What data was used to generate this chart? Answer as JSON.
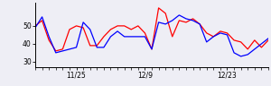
{
  "red_values": [
    50,
    53,
    42,
    36,
    37,
    48,
    50,
    49,
    39,
    39,
    44,
    48,
    50,
    50,
    48,
    50,
    46,
    37,
    60,
    57,
    44,
    53,
    52,
    54,
    51,
    46,
    44,
    47,
    46,
    42,
    41,
    37,
    42,
    38,
    42
  ],
  "blue_values": [
    49,
    55,
    44,
    35,
    36,
    37,
    38,
    52,
    48,
    38,
    38,
    44,
    47,
    44,
    44,
    44,
    44,
    37,
    52,
    51,
    53,
    56,
    54,
    53,
    51,
    41,
    44,
    46,
    45,
    35,
    33,
    34,
    37,
    40,
    43
  ],
  "xtick_positions": [
    6,
    16,
    28
  ],
  "xtick_labels": [
    "11/25",
    "12/9",
    "12/23"
  ],
  "ytick_positions": [
    30,
    40,
    50
  ],
  "ytick_labels": [
    "30",
    "40",
    "50"
  ],
  "ylim": [
    27,
    63
  ],
  "xlim": [
    0,
    34
  ],
  "red_color": "#ff0000",
  "blue_color": "#0000ff",
  "bg_color": "#eeeef5",
  "linewidth": 0.9
}
